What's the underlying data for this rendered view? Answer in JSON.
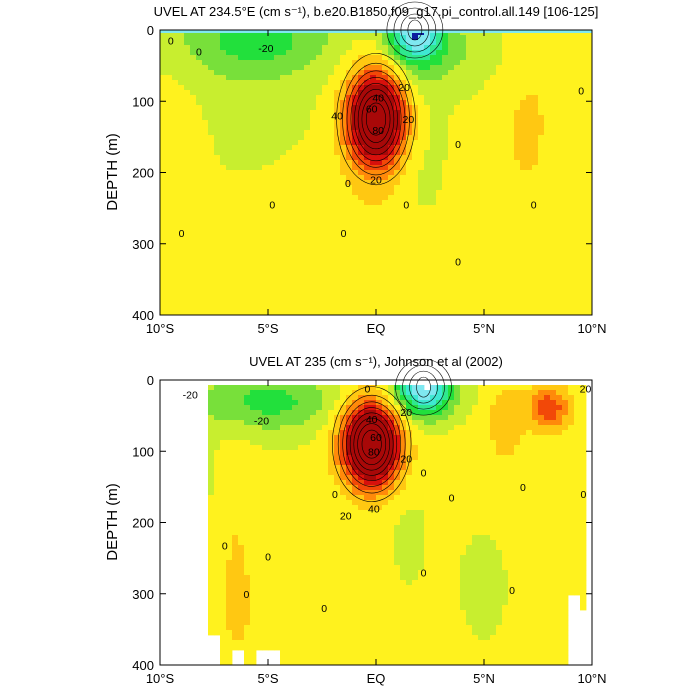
{
  "chart_data": [
    {
      "type": "contour",
      "title": "UVEL AT 234.5°E (cm s⁻¹), b.e20.B1850.f09_g17.pi_control.all.149 [106-125]",
      "ylabel": "DEPTH (m)",
      "xlabel": "",
      "x_ticks": [
        "10°S",
        "5°S",
        "EQ",
        "5°N",
        "10°N"
      ],
      "x_tick_values": [
        -10,
        -5,
        0,
        5,
        10
      ],
      "y_ticks": [
        "0",
        "100",
        "200",
        "300",
        "400"
      ],
      "y_tick_values": [
        0,
        100,
        200,
        300,
        400
      ],
      "xlim": [
        -10,
        10
      ],
      "ylim": [
        400,
        0
      ],
      "contour_interval": 10,
      "contour_labels": [
        "0",
        "-20",
        "20",
        "40",
        "60",
        "80",
        "20",
        "0",
        "20",
        "40",
        "0",
        "0",
        "0",
        "0",
        "0",
        "0",
        "0",
        "0",
        "0"
      ],
      "features": [
        {
          "type": "jet",
          "lat": 0.0,
          "depth": 125,
          "max": 90
        },
        {
          "type": "westward",
          "lat": 1.8,
          "depth": 0,
          "min": -60
        },
        {
          "type": "westward",
          "lat": -5.5,
          "depth": 10,
          "min": -25
        }
      ]
    },
    {
      "type": "contour",
      "title": "UVEL AT 235 (cm s⁻¹), Johnson et al (2002)",
      "ylabel": "DEPTH (m)",
      "xlabel": "",
      "x_ticks": [
        "10°S",
        "5°S",
        "EQ",
        "5°N",
        "10°N"
      ],
      "x_tick_values": [
        -10,
        -5,
        0,
        5,
        10
      ],
      "y_ticks": [
        "0",
        "100",
        "200",
        "300",
        "400"
      ],
      "y_tick_values": [
        0,
        100,
        200,
        300,
        400
      ],
      "xlim": [
        -10,
        10
      ],
      "ylim": [
        400,
        0
      ],
      "contour_interval": 10,
      "contour_labels": [
        "0",
        "-20",
        "-20",
        "20",
        "40",
        "60",
        "80",
        "20",
        "0",
        "20",
        "40",
        "0",
        "0",
        "0",
        "0",
        "0",
        "0",
        "0",
        "0",
        "0",
        "0",
        "20"
      ],
      "features": [
        {
          "type": "jet",
          "lat": -0.2,
          "depth": 90,
          "max": 95
        },
        {
          "type": "westward",
          "lat": 2.2,
          "depth": 10,
          "min": -60
        },
        {
          "type": "eastward",
          "lat": 8.0,
          "depth": 40,
          "max": 35
        }
      ]
    }
  ]
}
